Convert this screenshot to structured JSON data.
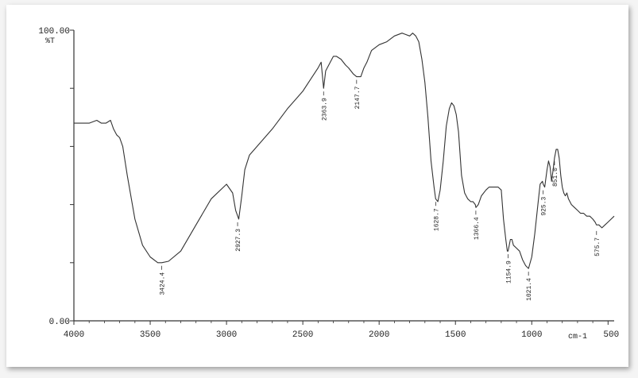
{
  "chart_data": {
    "type": "line",
    "title": "",
    "xlabel": "cm-1",
    "ylabel": "%T",
    "x_reversed": true,
    "xlim": [
      4000,
      450
    ],
    "ylim": [
      0,
      100
    ],
    "y_tick_labels": [
      "100.00",
      "0.00"
    ],
    "x_tick_labels": [
      "4000",
      "3500",
      "3000",
      "2500",
      "2000",
      "1500",
      "1000",
      "500"
    ],
    "x_tick_values": [
      4000,
      3500,
      3000,
      2500,
      2000,
      1500,
      1000,
      500
    ],
    "grid": false,
    "series": [
      {
        "color": "#333333",
        "x": [
          4000,
          3900,
          3850,
          3820,
          3790,
          3760,
          3740,
          3720,
          3700,
          3680,
          3650,
          3600,
          3550,
          3500,
          3450,
          3424,
          3380,
          3300,
          3200,
          3100,
          3000,
          2960,
          2940,
          2920,
          2900,
          2880,
          2850,
          2800,
          2700,
          2600,
          2500,
          2450,
          2400,
          2380,
          2364,
          2350,
          2320,
          2300,
          2280,
          2250,
          2220,
          2200,
          2170,
          2148,
          2120,
          2100,
          2080,
          2050,
          2000,
          1950,
          1900,
          1850,
          1800,
          1780,
          1760,
          1740,
          1720,
          1700,
          1680,
          1660,
          1640,
          1630,
          1615,
          1600,
          1580,
          1560,
          1540,
          1525,
          1510,
          1495,
          1480,
          1460,
          1440,
          1420,
          1400,
          1385,
          1370,
          1366,
          1350,
          1330,
          1300,
          1280,
          1260,
          1240,
          1220,
          1200,
          1185,
          1170,
          1160,
          1155,
          1140,
          1130,
          1120,
          1100,
          1080,
          1060,
          1040,
          1021,
          1000,
          980,
          960,
          945,
          930,
          925,
          915,
          900,
          890,
          880,
          870,
          860,
          851,
          840,
          830,
          820,
          810,
          800,
          790,
          780,
          770,
          760,
          740,
          720,
          700,
          680,
          660,
          640,
          620,
          600,
          585,
          576,
          560,
          540,
          520,
          500,
          480,
          460
        ],
        "y": [
          68,
          68,
          69,
          68,
          68,
          69,
          66,
          64,
          63,
          60,
          50,
          35,
          26,
          22,
          20,
          20,
          20.5,
          24,
          33,
          42,
          47,
          44,
          38,
          35,
          43,
          52,
          57,
          60,
          66,
          73,
          79,
          83,
          87,
          89,
          80,
          86,
          89,
          91,
          91,
          90,
          88,
          87,
          85,
          84,
          84,
          87,
          89,
          93,
          95,
          96,
          98,
          99,
          98,
          99,
          98,
          96,
          90,
          82,
          70,
          55,
          46,
          42,
          41,
          45,
          55,
          67,
          73,
          75,
          74,
          71,
          65,
          50,
          44,
          42,
          41,
          41,
          40,
          39,
          40,
          43,
          45,
          46,
          46,
          46,
          46,
          45,
          35,
          28,
          24,
          24,
          28,
          28,
          26,
          25,
          24,
          21,
          19,
          18,
          22,
          30,
          40,
          47,
          48,
          47,
          46,
          52,
          55,
          53,
          48,
          52,
          56,
          59,
          59,
          56,
          50,
          46,
          44,
          43,
          44,
          42,
          40,
          39,
          38,
          37,
          37,
          36,
          36,
          35,
          34,
          33,
          33,
          32,
          33,
          34,
          35,
          36
        ]
      }
    ],
    "annotations": [
      {
        "x": 3424.4,
        "label": "3424.4",
        "y": 20
      },
      {
        "x": 2927.3,
        "label": "2927.3",
        "y": 35
      },
      {
        "x": 2363.9,
        "label": "2363.9",
        "y": 80
      },
      {
        "x": 2147.7,
        "label": "2147.7",
        "y": 84
      },
      {
        "x": 1628.7,
        "label": "1628.7",
        "y": 42
      },
      {
        "x": 1366.4,
        "label": "1366.4",
        "y": 39
      },
      {
        "x": 1154.9,
        "label": "1154.9",
        "y": 24
      },
      {
        "x": 1021.4,
        "label": "1021.4",
        "y": 18
      },
      {
        "x": 925.3,
        "label": "925.3",
        "y": 46
      },
      {
        "x": 851.0,
        "label": "851.0",
        "y": 56
      },
      {
        "x": 575.7,
        "label": "575.7",
        "y": 32
      }
    ]
  }
}
